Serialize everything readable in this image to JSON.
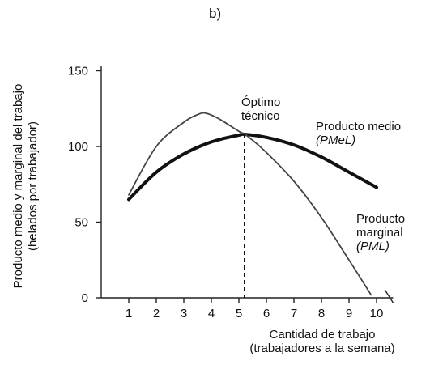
{
  "chart_data": {
    "type": "line",
    "panel_label": "b)",
    "x": [
      1,
      2,
      3,
      4,
      5,
      6,
      7,
      8,
      9,
      10
    ],
    "xlabel": [
      "Cantidad de trabajo",
      "(trabajadores a la semana)"
    ],
    "ylabel": [
      "Producto medio y marginal del trabajo",
      "(helados por trabajador)"
    ],
    "xlim": [
      0,
      10.6
    ],
    "ylim": [
      0,
      150
    ],
    "yticks": [
      0,
      50,
      100,
      150
    ],
    "series": [
      {
        "name_lines": [
          "Producto medio",
          "(PMeL)"
        ],
        "color": "#111111",
        "width": 4,
        "x": [
          1,
          2,
          3,
          4,
          5,
          5.2,
          6,
          7,
          8,
          9,
          10
        ],
        "y": [
          65,
          83,
          95,
          103,
          107.5,
          108,
          106,
          101,
          93,
          83,
          73
        ]
      },
      {
        "name_lines": [
          "Producto",
          "marginal",
          "(PML)"
        ],
        "color": "#444444",
        "width": 1.8,
        "x": [
          1,
          2,
          3,
          3.5,
          3.8,
          4.3,
          5,
          5.3,
          6,
          7,
          8,
          9,
          9.8
        ],
        "y": [
          68,
          100,
          116,
          121,
          122,
          118,
          110,
          107,
          96,
          77,
          53,
          25,
          2
        ]
      }
    ],
    "annotations": [
      {
        "text_lines": [
          "Óptimo",
          "técnico"
        ],
        "x": 5.2,
        "y": 108
      }
    ]
  }
}
